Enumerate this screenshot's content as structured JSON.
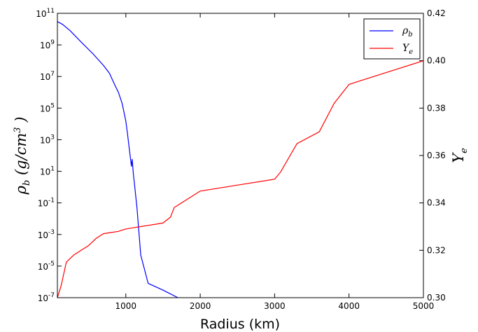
{
  "chart_data": {
    "type": "line",
    "xlabel": "Radius (km)",
    "ylabel_left": "ρ_b (g/cm³)",
    "ylabel_right": "Y_e",
    "xlim": [
      80,
      5000
    ],
    "ylim_left": [
      1e-07,
      100000000000.0
    ],
    "ylim_right": [
      0.3,
      0.42
    ],
    "left_scale": "log",
    "right_scale": "linear",
    "legend_position": "top-right",
    "x_ticks": [
      "1000",
      "2000",
      "3000",
      "4000",
      "5000"
    ],
    "y_left_ticks": [
      {
        "base": "10",
        "exp": "11"
      },
      {
        "base": "10",
        "exp": "9"
      },
      {
        "base": "10",
        "exp": "7"
      },
      {
        "base": "10",
        "exp": "5"
      },
      {
        "base": "10",
        "exp": "3"
      },
      {
        "base": "10",
        "exp": "1"
      },
      {
        "base": "10",
        "exp": "-1"
      },
      {
        "base": "10",
        "exp": "-3"
      },
      {
        "base": "10",
        "exp": "-5"
      },
      {
        "base": "10",
        "exp": "-7"
      }
    ],
    "y_right_ticks": [
      "0.42",
      "0.40",
      "0.38",
      "0.36",
      "0.34",
      "0.32",
      "0.30"
    ],
    "series": [
      {
        "name": "ρ_b",
        "color": "#0000ff",
        "axis": "left",
        "x": [
          80,
          150,
          250,
          400,
          550,
          700,
          780,
          800,
          850,
          900,
          950,
          1000,
          1020,
          1040,
          1060,
          1075,
          1085,
          1090,
          1100,
          1120,
          1150,
          1200,
          1300,
          1500,
          1700,
          2000,
          2200,
          2400,
          2500,
          2550,
          2600,
          2700,
          2800,
          2900,
          3000,
          3500,
          4000,
          4500,
          5000
        ],
        "y": [
          30000000000.0,
          20000000000.0,
          8000000000.0,
          1500000000.0,
          300000000.0,
          50000000.0,
          16000000.0,
          10000000.0,
          3000000.0,
          1000000.0,
          200000.0,
          15000.0,
          3000,
          500,
          80,
          20,
          60,
          30,
          8,
          1,
          0.05,
          5e-05,
          8e-07,
          3e-07,
          1e-07,
          4e-08,
          3e-08,
          2.3e-08,
          2.1e-08,
          2e-08,
          1.9e-08,
          1.8e-08,
          1.75e-08,
          1.7e-08,
          1.65e-08,
          1.6e-08,
          1.55e-08,
          1.5e-08,
          1.48e-08
        ]
      },
      {
        "name": "Y_e",
        "color": "#ff0000",
        "axis": "right",
        "x": [
          80,
          130,
          200,
          300,
          400,
          500,
          600,
          700,
          800,
          900,
          950,
          1000,
          1100,
          1200,
          1300,
          1400,
          1500,
          1600,
          1650,
          1700,
          1800,
          1900,
          2000,
          2500,
          3000,
          3080,
          3300,
          3600,
          3800,
          4000,
          4500,
          5000
        ],
        "y": [
          0.3,
          0.305,
          0.315,
          0.318,
          0.32,
          0.322,
          0.325,
          0.327,
          0.3275,
          0.328,
          0.3285,
          0.329,
          0.3295,
          0.33,
          0.3305,
          0.331,
          0.3315,
          0.334,
          0.338,
          0.339,
          0.341,
          0.343,
          0.345,
          0.3475,
          0.35,
          0.353,
          0.365,
          0.37,
          0.382,
          0.39,
          0.395,
          0.4
        ]
      }
    ]
  },
  "legend": {
    "items": [
      {
        "base": "ρ",
        "sub": "b",
        "color": "#0000ff"
      },
      {
        "base": "Y",
        "sub": "e",
        "color": "#ff0000"
      }
    ]
  }
}
